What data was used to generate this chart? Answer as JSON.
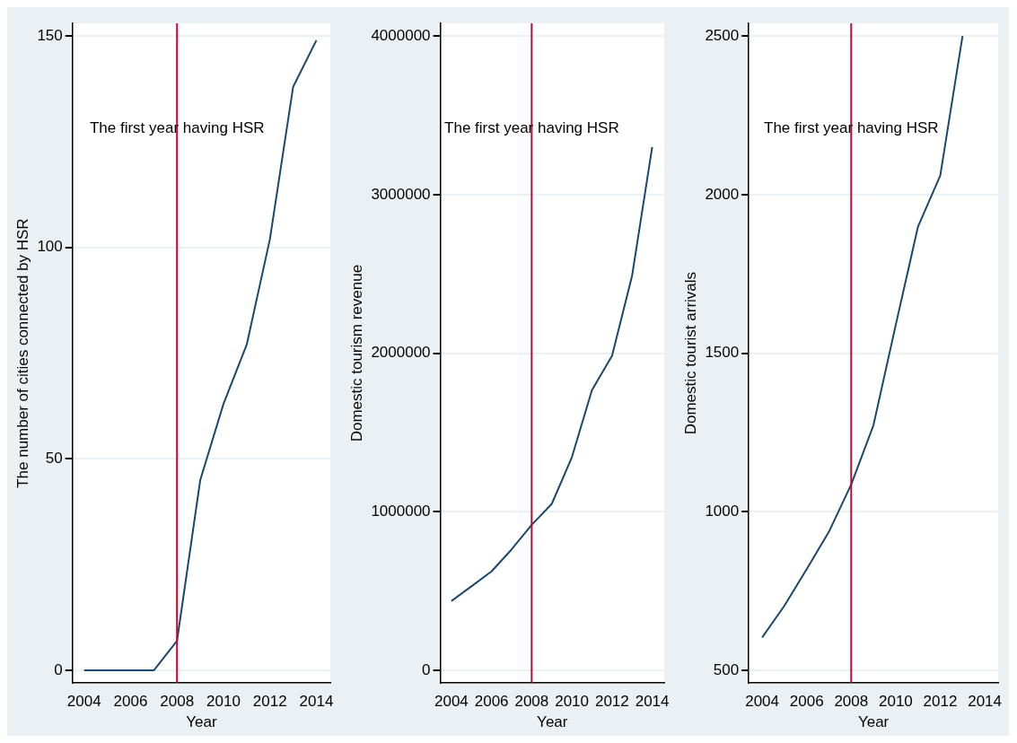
{
  "chart_data": [
    {
      "type": "line",
      "xlabel": "Year",
      "ylabel": "The number of cities connected by HSR",
      "x": [
        2004,
        2005,
        2006,
        2007,
        2008,
        2009,
        2010,
        2011,
        2012,
        2013,
        2014
      ],
      "values": [
        0,
        0,
        0,
        0,
        7,
        45,
        63,
        77,
        102,
        138,
        149
      ],
      "color": "#1a476f",
      "xlim": [
        2003.5,
        2014.6
      ],
      "xticks": [
        2004,
        2006,
        2008,
        2010,
        2012,
        2014
      ],
      "ylim": [
        -3,
        153
      ],
      "yticks": [
        0,
        50,
        100,
        150
      ],
      "grid": "y",
      "ref_lines": [
        {
          "axis": "x",
          "value": 2008,
          "label": "The first year having HSR",
          "color": "#c10534"
        }
      ]
    },
    {
      "type": "line",
      "xlabel": "Year",
      "ylabel": "Domestic tourism revenue",
      "x": [
        2004,
        2005,
        2006,
        2007,
        2008,
        2009,
        2010,
        2011,
        2012,
        2013,
        2014
      ],
      "values": [
        437000,
        530000,
        624000,
        763000,
        918000,
        1050000,
        1344000,
        1767000,
        1983000,
        2489000,
        3300000
      ],
      "color": "#1a476f",
      "xlim": [
        2003.45,
        2014.6
      ],
      "xticks": [
        2004,
        2006,
        2008,
        2010,
        2012,
        2014
      ],
      "ylim": [
        -80000,
        4080000
      ],
      "yticks": [
        0,
        1000000,
        2000000,
        3000000,
        4000000
      ],
      "grid": "y",
      "ref_lines": [
        {
          "axis": "x",
          "value": 2008,
          "label": "The first year having HSR",
          "color": "#c10534"
        }
      ]
    },
    {
      "type": "line",
      "xlabel": "Year",
      "ylabel": "Domestic tourist arrivals",
      "x": [
        2004,
        2005,
        2006,
        2007,
        2008,
        2009,
        2010,
        2011,
        2012,
        2013
      ],
      "values": [
        604,
        704,
        819,
        937,
        1086,
        1273,
        1589,
        1899,
        2060,
        2500
      ],
      "color": "#1a476f",
      "xlim": [
        2003.4,
        2014.6
      ],
      "xticks": [
        2004,
        2006,
        2008,
        2010,
        2012,
        2014
      ],
      "ylim": [
        460,
        2540
      ],
      "yticks": [
        500,
        1000,
        1500,
        2000,
        2500
      ],
      "grid": "y",
      "ref_lines": [
        {
          "axis": "x",
          "value": 2008,
          "label": "The first year having HSR",
          "color": "#c10534"
        }
      ]
    }
  ]
}
